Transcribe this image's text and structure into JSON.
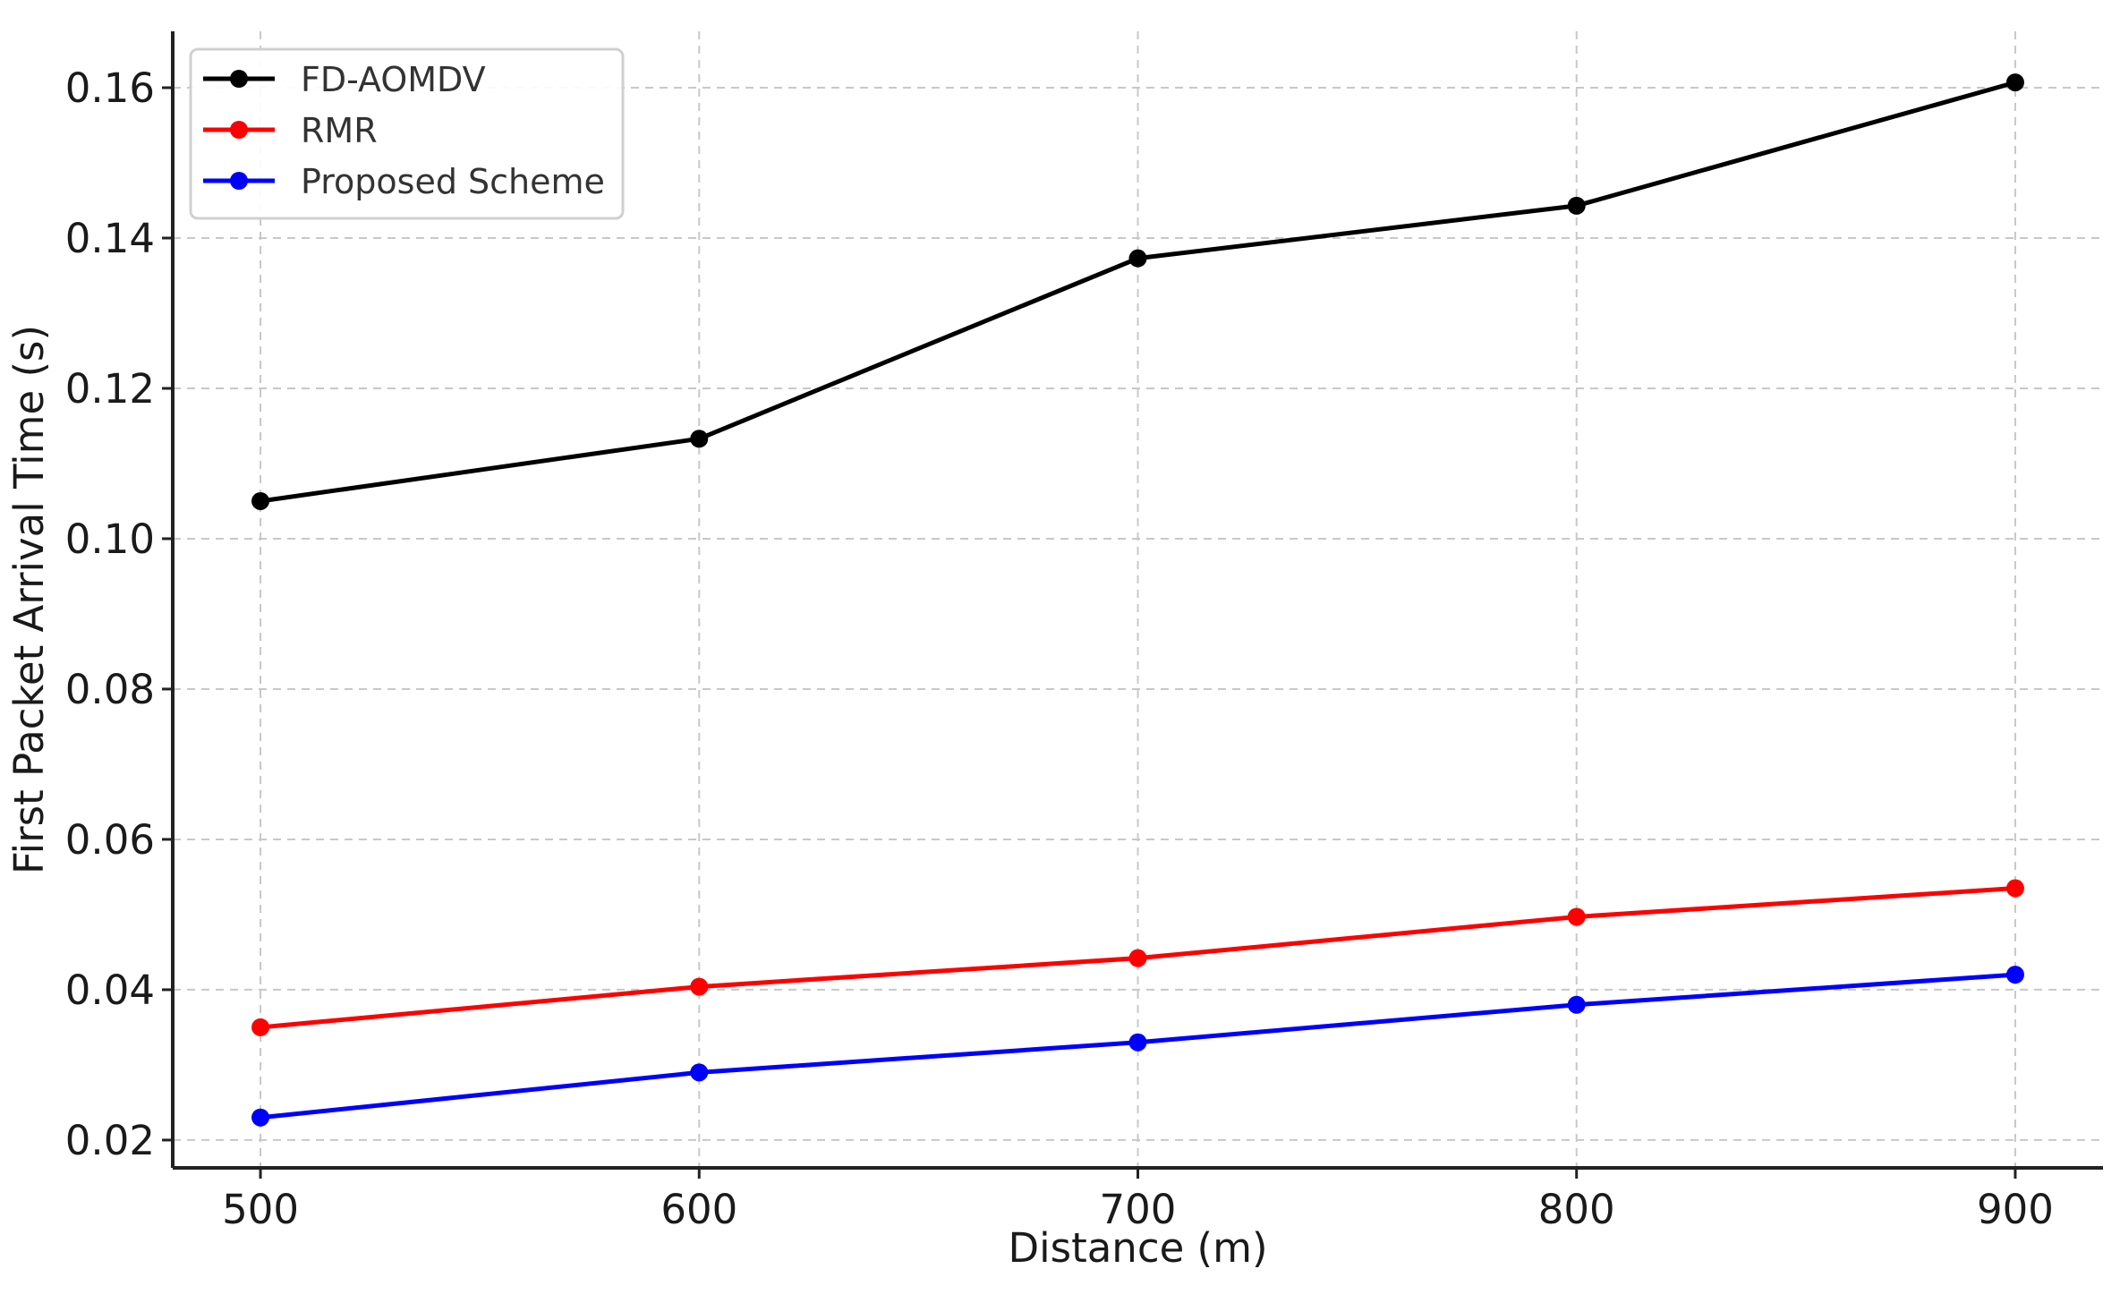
{
  "chart_data": {
    "type": "line",
    "title": "",
    "xlabel": "Distance (m)",
    "ylabel": "First Packet Arrival Time (s)",
    "x": [
      500,
      600,
      700,
      800,
      900
    ],
    "xticks": [
      "500",
      "600",
      "700",
      "800",
      "900"
    ],
    "yticks": [
      "0.02",
      "0.04",
      "0.06",
      "0.08",
      "0.10",
      "0.12",
      "0.14",
      "0.16"
    ],
    "ytick_values": [
      0.02,
      0.04,
      0.06,
      0.08,
      0.1,
      0.12,
      0.14,
      0.16
    ],
    "xlim": [
      480,
      920
    ],
    "ylim": [
      0.0163,
      0.1675
    ],
    "grid": true,
    "legend_position": "top-left",
    "series": [
      {
        "name": "FD-AOMDV",
        "color": "#000000",
        "values": [
          0.105,
          0.1133,
          0.1373,
          0.1443,
          0.1607
        ]
      },
      {
        "name": "RMR",
        "color": "#ff0000",
        "values": [
          0.035,
          0.0404,
          0.0442,
          0.0497,
          0.0535
        ]
      },
      {
        "name": "Proposed Scheme",
        "color": "#0000ff",
        "values": [
          0.023,
          0.029,
          0.033,
          0.038,
          0.042
        ]
      }
    ]
  }
}
